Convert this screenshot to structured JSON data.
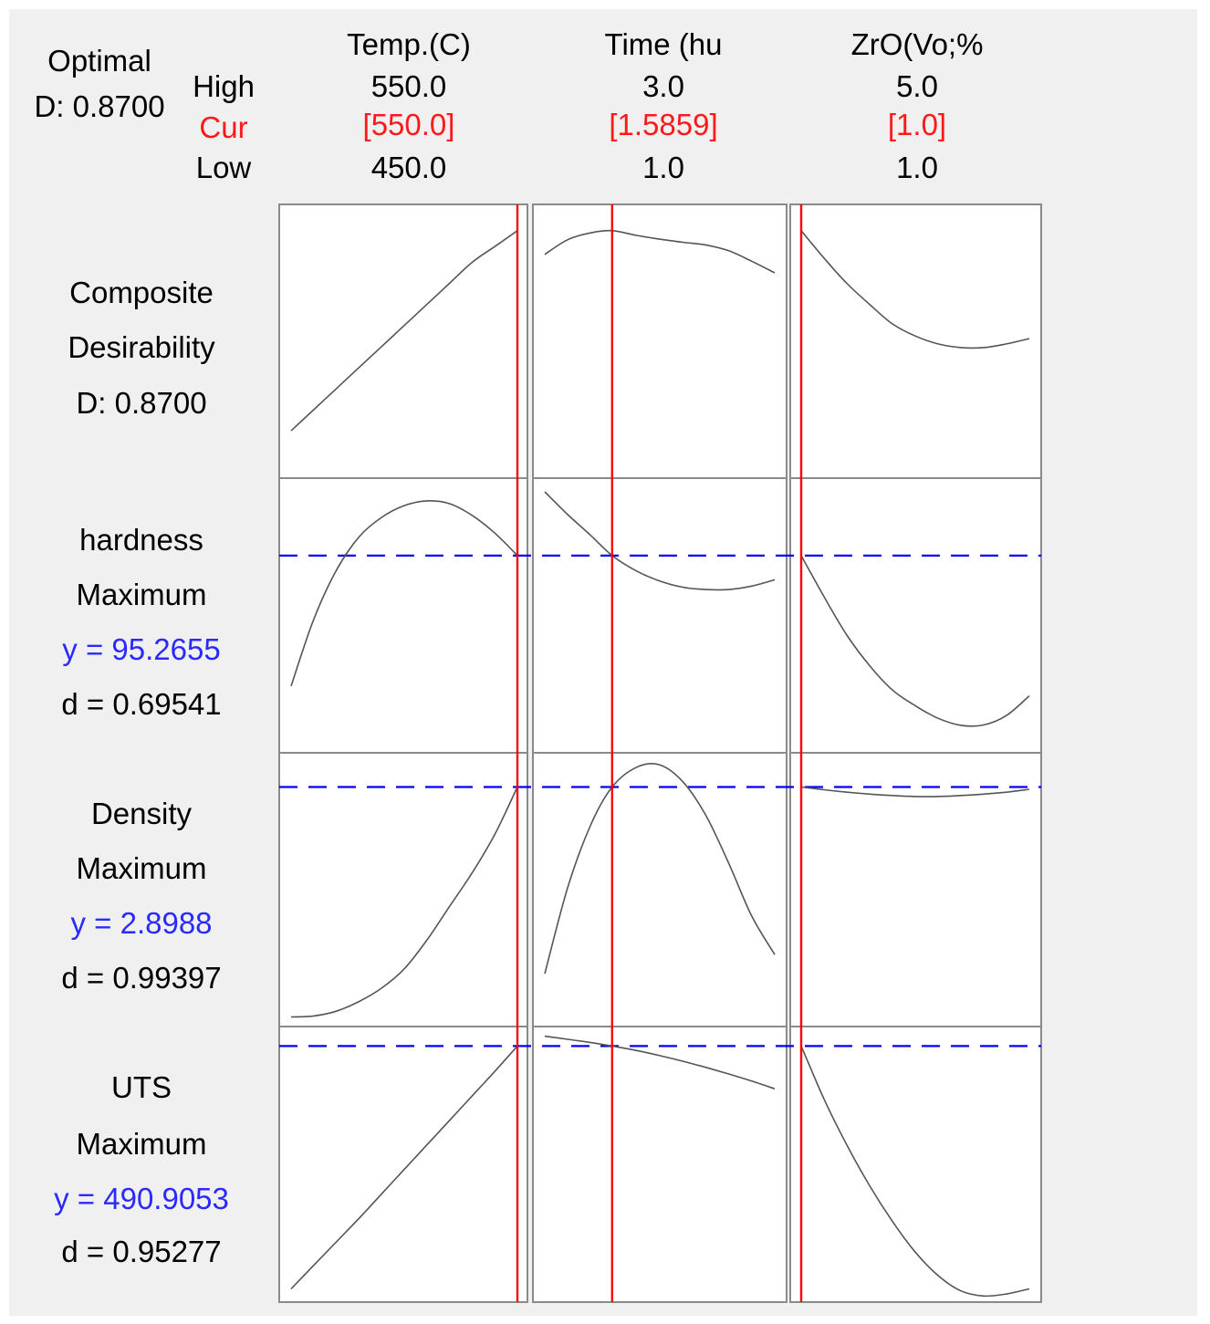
{
  "header": {
    "optimal_label": "Optimal",
    "optimal_d": "D: 0.8700",
    "row_high": "High",
    "row_cur": "Cur",
    "row_low": "Low"
  },
  "factors": [
    {
      "name": "Temp.(C)",
      "high": "550.0",
      "cur": "[550.0]",
      "low": "450.0"
    },
    {
      "name": "Time (hu",
      "high": "3.0",
      "cur": "[1.5859]",
      "low": "1.0"
    },
    {
      "name": "ZrO(Vo;%",
      "high": "5.0",
      "cur": "[1.0]",
      "low": "1.0"
    }
  ],
  "responses": [
    {
      "line1": "Composite",
      "line2": "Desirability",
      "line3": "D: 0.8700",
      "line4": ""
    },
    {
      "line1": "hardness",
      "line2": "Maximum",
      "line3": "y = 95.2655",
      "line4": "d = 0.69541"
    },
    {
      "line1": "Density",
      "line2": "Maximum",
      "line3": "y = 2.8988",
      "line4": "d = 0.99397"
    },
    {
      "line1": "UTS",
      "line2": "Maximum",
      "line3": "y = 490.9053",
      "line4": "d = 0.95277"
    }
  ],
  "colors": {
    "current_setting_line": "#ff0000",
    "response_reference_line": "#0000ff",
    "curve": "#555555",
    "panel_border": "#8a8a8a",
    "cur_text": "#ff1a1a",
    "y_text": "#2a2aff"
  },
  "chart_data": {
    "type": "line",
    "title": "",
    "description_of_axes": "columns = factors (x from low to high), rows = responses (desirability or response value)",
    "x_ranges": {
      "Temp.(C)": [
        450.0,
        550.0
      ],
      "Time (hu": [
        1.0,
        3.0
      ],
      "ZrO(Vo;%": [
        1.0,
        5.0
      ]
    },
    "current_x": {
      "Temp.(C)": 550.0,
      "Time (hu": 1.5859,
      "ZrO(Vo;%": 1.0
    },
    "panels": [
      {
        "response": "Composite Desirability",
        "reference_y": null,
        "series": [
          {
            "factor": "Temp.(C)",
            "x": [
              450,
              460,
              470,
              480,
              490,
              500,
              510,
              520,
              530,
              540,
              550
            ],
            "y": [
              0.49,
              0.53,
              0.57,
              0.61,
              0.65,
              0.69,
              0.73,
              0.77,
              0.81,
              0.84,
              0.87
            ]
          },
          {
            "factor": "Time (hu",
            "x": [
              1.0,
              1.2,
              1.4,
              1.5859,
              1.8,
              2.0,
              2.2,
              2.4,
              2.6,
              2.8,
              3.0
            ],
            "y": [
              0.825,
              0.853,
              0.866,
              0.87,
              0.861,
              0.854,
              0.848,
              0.843,
              0.832,
              0.812,
              0.79
            ]
          },
          {
            "factor": "ZrO(Vo;%",
            "x": [
              1.0,
              1.4,
              1.8,
              2.2,
              2.6,
              3.0,
              3.4,
              3.8,
              4.2,
              4.6,
              5.0
            ],
            "y": [
              0.87,
              0.818,
              0.77,
              0.73,
              0.693,
              0.67,
              0.655,
              0.648,
              0.648,
              0.655,
              0.665
            ]
          }
        ]
      },
      {
        "response": "hardness",
        "reference_y": 95.2655,
        "series": [
          {
            "factor": "Temp.(C)",
            "x": [
              450,
              460,
              470,
              480,
              490,
              500,
              510,
              520,
              530,
              540,
              550
            ],
            "y": [
              62.0,
              79.0,
              91.5,
              100.0,
              105.0,
              108.0,
              109.2,
              108.5,
              105.5,
              101.0,
              95.2655
            ]
          },
          {
            "factor": "Time (hu",
            "x": [
              1.0,
              1.2,
              1.4,
              1.5859,
              1.8,
              2.0,
              2.2,
              2.4,
              2.6,
              2.8,
              3.0
            ],
            "y": [
              111.5,
              105.7,
              100.4,
              95.2655,
              91.3,
              88.8,
              87.2,
              86.6,
              86.6,
              87.5,
              89.1
            ]
          },
          {
            "factor": "ZrO(Vo;%",
            "x": [
              1.0,
              1.4,
              1.8,
              2.2,
              2.6,
              3.0,
              3.4,
              3.8,
              4.2,
              4.6,
              5.0
            ],
            "y": [
              95.2655,
              84.8,
              75.0,
              67.2,
              61.0,
              57.0,
              53.8,
              52.0,
              52.1,
              54.5,
              59.5
            ]
          }
        ]
      },
      {
        "response": "Density",
        "reference_y": 2.8988,
        "series": [
          {
            "factor": "Temp.(C)",
            "x": [
              450,
              460,
              470,
              480,
              490,
              500,
              510,
              520,
              530,
              540,
              550
            ],
            "y": [
              2.42,
              2.422,
              2.432,
              2.452,
              2.48,
              2.52,
              2.58,
              2.65,
              2.72,
              2.8,
              2.8988
            ]
          },
          {
            "factor": "Time (hu",
            "x": [
              1.0,
              1.2,
              1.4,
              1.5859,
              1.8,
              2.0,
              2.2,
              2.4,
              2.6,
              2.8,
              3.0
            ],
            "y": [
              2.51,
              2.69,
              2.82,
              2.8988,
              2.94,
              2.945,
              2.91,
              2.84,
              2.74,
              2.63,
              2.55
            ]
          },
          {
            "factor": "ZrO(Vo;%",
            "x": [
              1.0,
              1.4,
              1.8,
              2.2,
              2.6,
              3.0,
              3.4,
              3.8,
              4.2,
              4.6,
              5.0
            ],
            "y": [
              2.8988,
              2.893,
              2.888,
              2.884,
              2.881,
              2.879,
              2.879,
              2.881,
              2.884,
              2.888,
              2.894
            ]
          }
        ]
      },
      {
        "response": "UTS",
        "reference_y": 490.9053,
        "series": [
          {
            "factor": "Temp.(C)",
            "x": [
              450,
              460,
              470,
              480,
              490,
              500,
              510,
              520,
              530,
              540,
              550
            ],
            "y": [
              253.0,
              276.0,
              299.0,
              322.0,
              346.0,
              370.0,
              394.0,
              418.0,
              442.0,
              466.0,
              490.9053
            ]
          },
          {
            "factor": "Time (hu",
            "x": [
              1.0,
              1.2,
              1.4,
              1.5859,
              1.8,
              2.0,
              2.2,
              2.4,
              2.6,
              2.8,
              3.0
            ],
            "y": [
              500.5,
              497.5,
              494.3,
              490.9053,
              486.5,
              481.5,
              476.0,
              470.0,
              463.5,
              456.5,
              449.0
            ]
          },
          {
            "factor": "ZrO(Vo;%",
            "x": [
              1.0,
              1.4,
              1.8,
              2.2,
              2.6,
              3.0,
              3.4,
              3.8,
              4.2,
              4.6,
              5.0
            ],
            "y": [
              490.9053,
              439.0,
              394.0,
              354.0,
              319.0,
              289.0,
              266.0,
              251.0,
              246.0,
              248.0,
              253.0
            ]
          }
        ]
      }
    ],
    "y_ranges": [
      [
        0.4,
        0.92
      ],
      [
        45.0,
        115.0
      ],
      [
        2.4,
        2.97
      ],
      [
        240.0,
        510.0
      ]
    ],
    "grid": false,
    "legend": "none"
  }
}
